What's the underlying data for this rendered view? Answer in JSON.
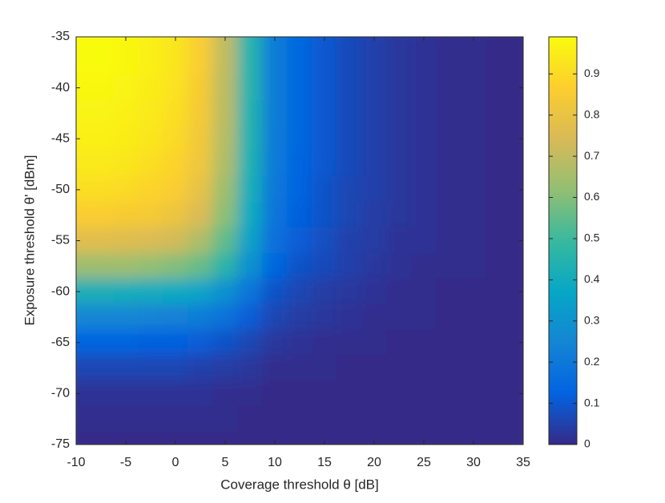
{
  "chart_data": {
    "type": "heatmap",
    "xlabel": "Coverage threshold θ [dB]",
    "ylabel": "Exposure threshold θ' [dBm]",
    "colormap": "parula",
    "xlim": [
      -10,
      35
    ],
    "xticks": [
      -10,
      -5,
      0,
      5,
      10,
      15,
      20,
      25,
      30,
      35
    ],
    "ylim": [
      -75,
      -35
    ],
    "yticks": [
      -75,
      -70,
      -65,
      -60,
      -55,
      -50,
      -45,
      -40,
      -35
    ],
    "clim": [
      0,
      0.99
    ],
    "cticks": [
      0,
      0.1,
      0.2,
      0.3,
      0.4,
      0.5,
      0.6,
      0.7,
      0.8,
      0.9
    ],
    "x": [
      -10,
      -7.5,
      -5,
      -2.5,
      0,
      2.5,
      5,
      7.5,
      10,
      12.5,
      15,
      17.5,
      20,
      22.5,
      25,
      27.5,
      30,
      32.5,
      35
    ],
    "y": [
      -35,
      -37.5,
      -40,
      -42.5,
      -45,
      -47.5,
      -50,
      -52.5,
      -55,
      -57.5,
      -60,
      -62.5,
      -65,
      -67.5,
      -70,
      -72.5,
      -75
    ],
    "z": [
      [
        0.99,
        0.99,
        0.98,
        0.96,
        0.93,
        0.86,
        0.7,
        0.45,
        0.22,
        0.14,
        0.1,
        0.07,
        0.05,
        0.03,
        0.02,
        0.01,
        0.01,
        0,
        0
      ],
      [
        0.99,
        0.99,
        0.98,
        0.96,
        0.93,
        0.86,
        0.7,
        0.45,
        0.22,
        0.14,
        0.1,
        0.07,
        0.05,
        0.03,
        0.02,
        0.01,
        0.01,
        0,
        0
      ],
      [
        0.98,
        0.98,
        0.97,
        0.95,
        0.92,
        0.85,
        0.69,
        0.45,
        0.22,
        0.14,
        0.1,
        0.07,
        0.05,
        0.03,
        0.02,
        0.01,
        0.01,
        0,
        0
      ],
      [
        0.97,
        0.97,
        0.96,
        0.94,
        0.91,
        0.84,
        0.69,
        0.44,
        0.22,
        0.14,
        0.1,
        0.07,
        0.05,
        0.03,
        0.02,
        0.01,
        0.01,
        0,
        0
      ],
      [
        0.96,
        0.96,
        0.95,
        0.93,
        0.9,
        0.83,
        0.68,
        0.44,
        0.21,
        0.14,
        0.1,
        0.07,
        0.05,
        0.03,
        0.02,
        0.01,
        0.01,
        0,
        0
      ],
      [
        0.94,
        0.94,
        0.93,
        0.91,
        0.88,
        0.82,
        0.67,
        0.43,
        0.21,
        0.13,
        0.1,
        0.07,
        0.05,
        0.03,
        0.02,
        0.01,
        0.01,
        0,
        0
      ],
      [
        0.91,
        0.91,
        0.9,
        0.88,
        0.86,
        0.79,
        0.64,
        0.41,
        0.2,
        0.13,
        0.09,
        0.06,
        0.05,
        0.03,
        0.02,
        0.01,
        0.01,
        0,
        0
      ],
      [
        0.86,
        0.86,
        0.85,
        0.84,
        0.81,
        0.75,
        0.61,
        0.39,
        0.19,
        0.12,
        0.09,
        0.06,
        0.04,
        0.03,
        0.02,
        0.01,
        0.01,
        0,
        0
      ],
      [
        0.77,
        0.77,
        0.76,
        0.75,
        0.73,
        0.67,
        0.55,
        0.35,
        0.17,
        0.11,
        0.08,
        0.05,
        0.04,
        0.02,
        0.02,
        0.01,
        0.01,
        0,
        0
      ],
      [
        0.64,
        0.64,
        0.64,
        0.62,
        0.6,
        0.56,
        0.46,
        0.29,
        0.14,
        0.09,
        0.07,
        0.05,
        0.03,
        0.02,
        0.01,
        0.01,
        0.01,
        0,
        0
      ],
      [
        0.42,
        0.42,
        0.41,
        0.4,
        0.39,
        0.36,
        0.29,
        0.19,
        0.09,
        0.06,
        0.04,
        0.03,
        0.02,
        0.01,
        0.01,
        0,
        0,
        0,
        0
      ],
      [
        0.25,
        0.25,
        0.25,
        0.24,
        0.23,
        0.22,
        0.18,
        0.11,
        0.06,
        0.04,
        0.03,
        0.02,
        0.01,
        0.01,
        0.01,
        0,
        0,
        0,
        0
      ],
      [
        0.13,
        0.13,
        0.13,
        0.12,
        0.12,
        0.11,
        0.09,
        0.06,
        0.03,
        0.02,
        0.01,
        0.01,
        0.01,
        0,
        0,
        0,
        0,
        0,
        0
      ],
      [
        0.06,
        0.06,
        0.06,
        0.06,
        0.06,
        0.05,
        0.04,
        0.03,
        0.01,
        0.01,
        0.01,
        0,
        0,
        0,
        0,
        0,
        0,
        0,
        0
      ],
      [
        0.02,
        0.02,
        0.02,
        0.02,
        0.02,
        0.02,
        0.01,
        0.01,
        0,
        0,
        0,
        0,
        0,
        0,
        0,
        0,
        0,
        0,
        0
      ],
      [
        0.01,
        0.01,
        0.01,
        0.01,
        0.01,
        0.01,
        0.01,
        0,
        0,
        0,
        0,
        0,
        0,
        0,
        0,
        0,
        0,
        0,
        0
      ],
      [
        0,
        0,
        0,
        0,
        0,
        0,
        0,
        0,
        0,
        0,
        0,
        0,
        0,
        0,
        0,
        0,
        0,
        0,
        0
      ]
    ]
  }
}
